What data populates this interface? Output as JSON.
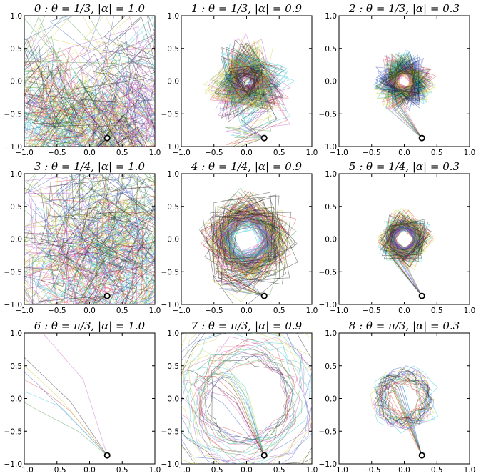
{
  "chart_data": [
    {
      "type": "line",
      "title": "0 : θ = 1/3, |α| = 1.0",
      "theta": "1/3",
      "alpha": 1.0,
      "xlim": [
        -1.0,
        1.0
      ],
      "ylim": [
        -1.0,
        1.0
      ],
      "xticks": [
        "−1.0",
        "−0.5",
        "0.0",
        "0.5",
        "1.0"
      ],
      "yticks": [
        "1.0",
        "0.5",
        "0.0",
        "−0.5",
        "−1.0"
      ],
      "start_point": [
        0.27,
        -0.87
      ],
      "grid": false
    },
    {
      "type": "line",
      "title": "1 : θ = 1/3, |α| = 0.9",
      "theta": "1/3",
      "alpha": 0.9,
      "xlim": [
        -1.0,
        1.0
      ],
      "ylim": [
        -1.0,
        1.0
      ],
      "xticks": [
        "−1.0",
        "−0.5",
        "0.0",
        "0.5",
        "1.0"
      ],
      "yticks": [
        "1.0",
        "0.5",
        "0.0",
        "−0.5",
        "−1.0"
      ],
      "start_point": [
        0.27,
        -0.87
      ],
      "grid": false
    },
    {
      "type": "line",
      "title": "2 : θ = 1/3, |α| = 0.3",
      "theta": "1/3",
      "alpha": 0.3,
      "xlim": [
        -1.0,
        1.0
      ],
      "ylim": [
        -1.0,
        1.0
      ],
      "xticks": [
        "−1.0",
        "−0.5",
        "0.0",
        "0.5",
        "1.0"
      ],
      "yticks": [
        "1.0",
        "0.5",
        "0.0",
        "−0.5",
        "−1.0"
      ],
      "start_point": [
        0.27,
        -0.87
      ],
      "grid": false
    },
    {
      "type": "line",
      "title": "3 : θ = 1/4, |α| = 1.0",
      "theta": "1/4",
      "alpha": 1.0,
      "xlim": [
        -1.0,
        1.0
      ],
      "ylim": [
        -1.0,
        1.0
      ],
      "xticks": [
        "−1.0",
        "−0.5",
        "0.0",
        "0.5",
        "1.0"
      ],
      "yticks": [
        "1.0",
        "0.5",
        "0.0",
        "−0.5",
        "−1.0"
      ],
      "start_point": [
        0.27,
        -0.87
      ],
      "grid": false
    },
    {
      "type": "line",
      "title": "4 : θ = 1/4, |α| = 0.9",
      "theta": "1/4",
      "alpha": 0.9,
      "xlim": [
        -1.0,
        1.0
      ],
      "ylim": [
        -1.0,
        1.0
      ],
      "xticks": [
        "−1.0",
        "−0.5",
        "0.0",
        "0.5",
        "1.0"
      ],
      "yticks": [
        "1.0",
        "0.5",
        "0.0",
        "−0.5",
        "−1.0"
      ],
      "start_point": [
        0.27,
        -0.87
      ],
      "grid": false
    },
    {
      "type": "line",
      "title": "5 : θ = 1/4, |α| = 0.3",
      "theta": "1/4",
      "alpha": 0.3,
      "xlim": [
        -1.0,
        1.0
      ],
      "ylim": [
        -1.0,
        1.0
      ],
      "xticks": [
        "−1.0",
        "−0.5",
        "0.0",
        "0.5",
        "1.0"
      ],
      "yticks": [
        "1.0",
        "0.5",
        "0.0",
        "−0.5",
        "−1.0"
      ],
      "start_point": [
        0.27,
        -0.87
      ],
      "grid": false
    },
    {
      "type": "line",
      "title": "6 : θ = π/3, |α| = 1.0",
      "theta": "π/3",
      "alpha": 1.0,
      "xlim": [
        -1.0,
        1.0
      ],
      "ylim": [
        -1.0,
        1.0
      ],
      "xticks": [
        "−1.0",
        "−0.5",
        "0.0",
        "0.5",
        "1.0"
      ],
      "yticks": [
        "1.0",
        "0.5",
        "0.0",
        "−0.5",
        "−1.0"
      ],
      "start_point": [
        0.27,
        -0.87
      ],
      "grid": false
    },
    {
      "type": "line",
      "title": "7 : θ = π/3, |α| = 0.9",
      "theta": "π/3",
      "alpha": 0.9,
      "xlim": [
        -1.0,
        1.0
      ],
      "ylim": [
        -1.0,
        1.0
      ],
      "xticks": [
        "−1.0",
        "−0.5",
        "0.0",
        "0.5",
        "1.0"
      ],
      "yticks": [
        "1.0",
        "0.5",
        "0.0",
        "−0.5",
        "−1.0"
      ],
      "start_point": [
        0.27,
        -0.87
      ],
      "grid": false
    },
    {
      "type": "line",
      "title": "8 : θ = π/3, |α| = 0.3",
      "theta": "π/3",
      "alpha": 0.3,
      "xlim": [
        -1.0,
        1.0
      ],
      "ylim": [
        -1.0,
        1.0
      ],
      "xticks": [
        "−1.0",
        "−0.5",
        "0.0",
        "0.5",
        "1.0"
      ],
      "yticks": [
        "1.0",
        "0.5",
        "0.0",
        "−0.5",
        "−1.0"
      ],
      "start_point": [
        0.27,
        -0.87
      ],
      "grid": false
    }
  ],
  "series_colors": [
    "#1f3fbf",
    "#2e8b2e",
    "#d62728",
    "#17becf",
    "#bc3fbc",
    "#c8c81e",
    "#000000"
  ]
}
